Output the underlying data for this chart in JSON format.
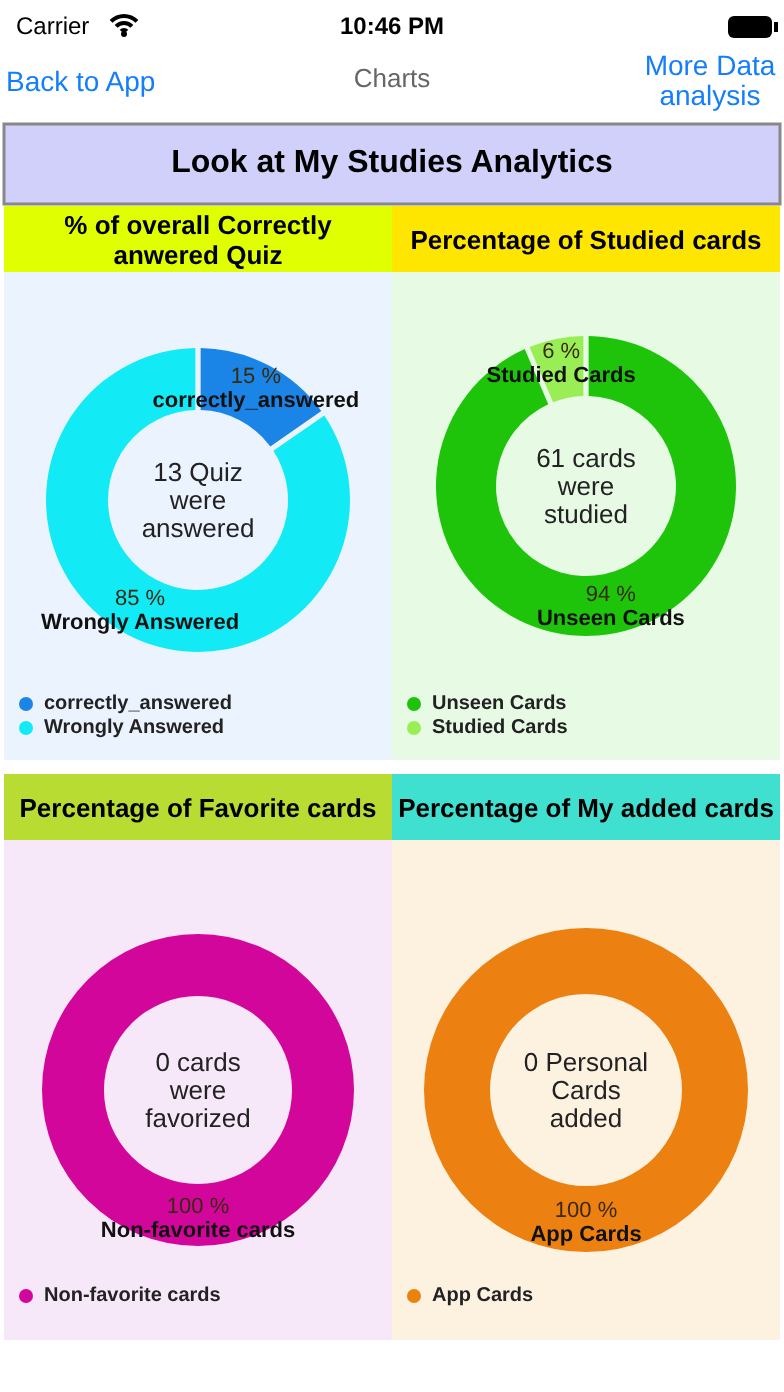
{
  "chart_data": [
    {
      "type": "other",
      "title": "Charts",
      "subtitle": "Look at My Studies Analytics",
      "annotations": [
        "Carrier",
        "10:46 PM",
        "Back to App",
        "More Data analysis"
      ]
    },
    {
      "type": "donut",
      "title": "% of overall Correctly anwered Quiz",
      "annotations": [
        "13 Quiz were answered"
      ],
      "categories": [
        "correctly_answered",
        "Wrongly Answered"
      ],
      "values": [
        15,
        85
      ],
      "colors": [
        "#1a85e6",
        "#12eaf6"
      ],
      "value_labels": [
        "15 %",
        "85 %"
      ],
      "legend": "bottom left"
    },
    {
      "type": "donut",
      "title": "Percentage of Studied cards",
      "annotations": [
        "61 cards were studied"
      ],
      "categories": [
        "Unseen Cards",
        "Studied Cards"
      ],
      "values": [
        94,
        6
      ],
      "colors": [
        "#1ec40a",
        "#99ee55"
      ],
      "value_labels": [
        "94 %",
        "6 %"
      ],
      "legend": "bottom left"
    },
    {
      "type": "donut",
      "title": "Percentage of Favorite cards",
      "annotations": [
        "0 cards were favorized"
      ],
      "categories": [
        "Non-favorite cards"
      ],
      "values": [
        100
      ],
      "colors": [
        "#d3069c"
      ],
      "value_labels": [
        "100 %"
      ],
      "legend": "bottom left"
    },
    {
      "type": "donut",
      "title": "Percentage of My added cards",
      "annotations": [
        "0 Personal Cards added"
      ],
      "categories": [
        "App Cards"
      ],
      "values": [
        100
      ],
      "colors": [
        "#ec8010"
      ],
      "value_labels": [
        "100 %"
      ],
      "legend": "bottom left"
    }
  ]
}
